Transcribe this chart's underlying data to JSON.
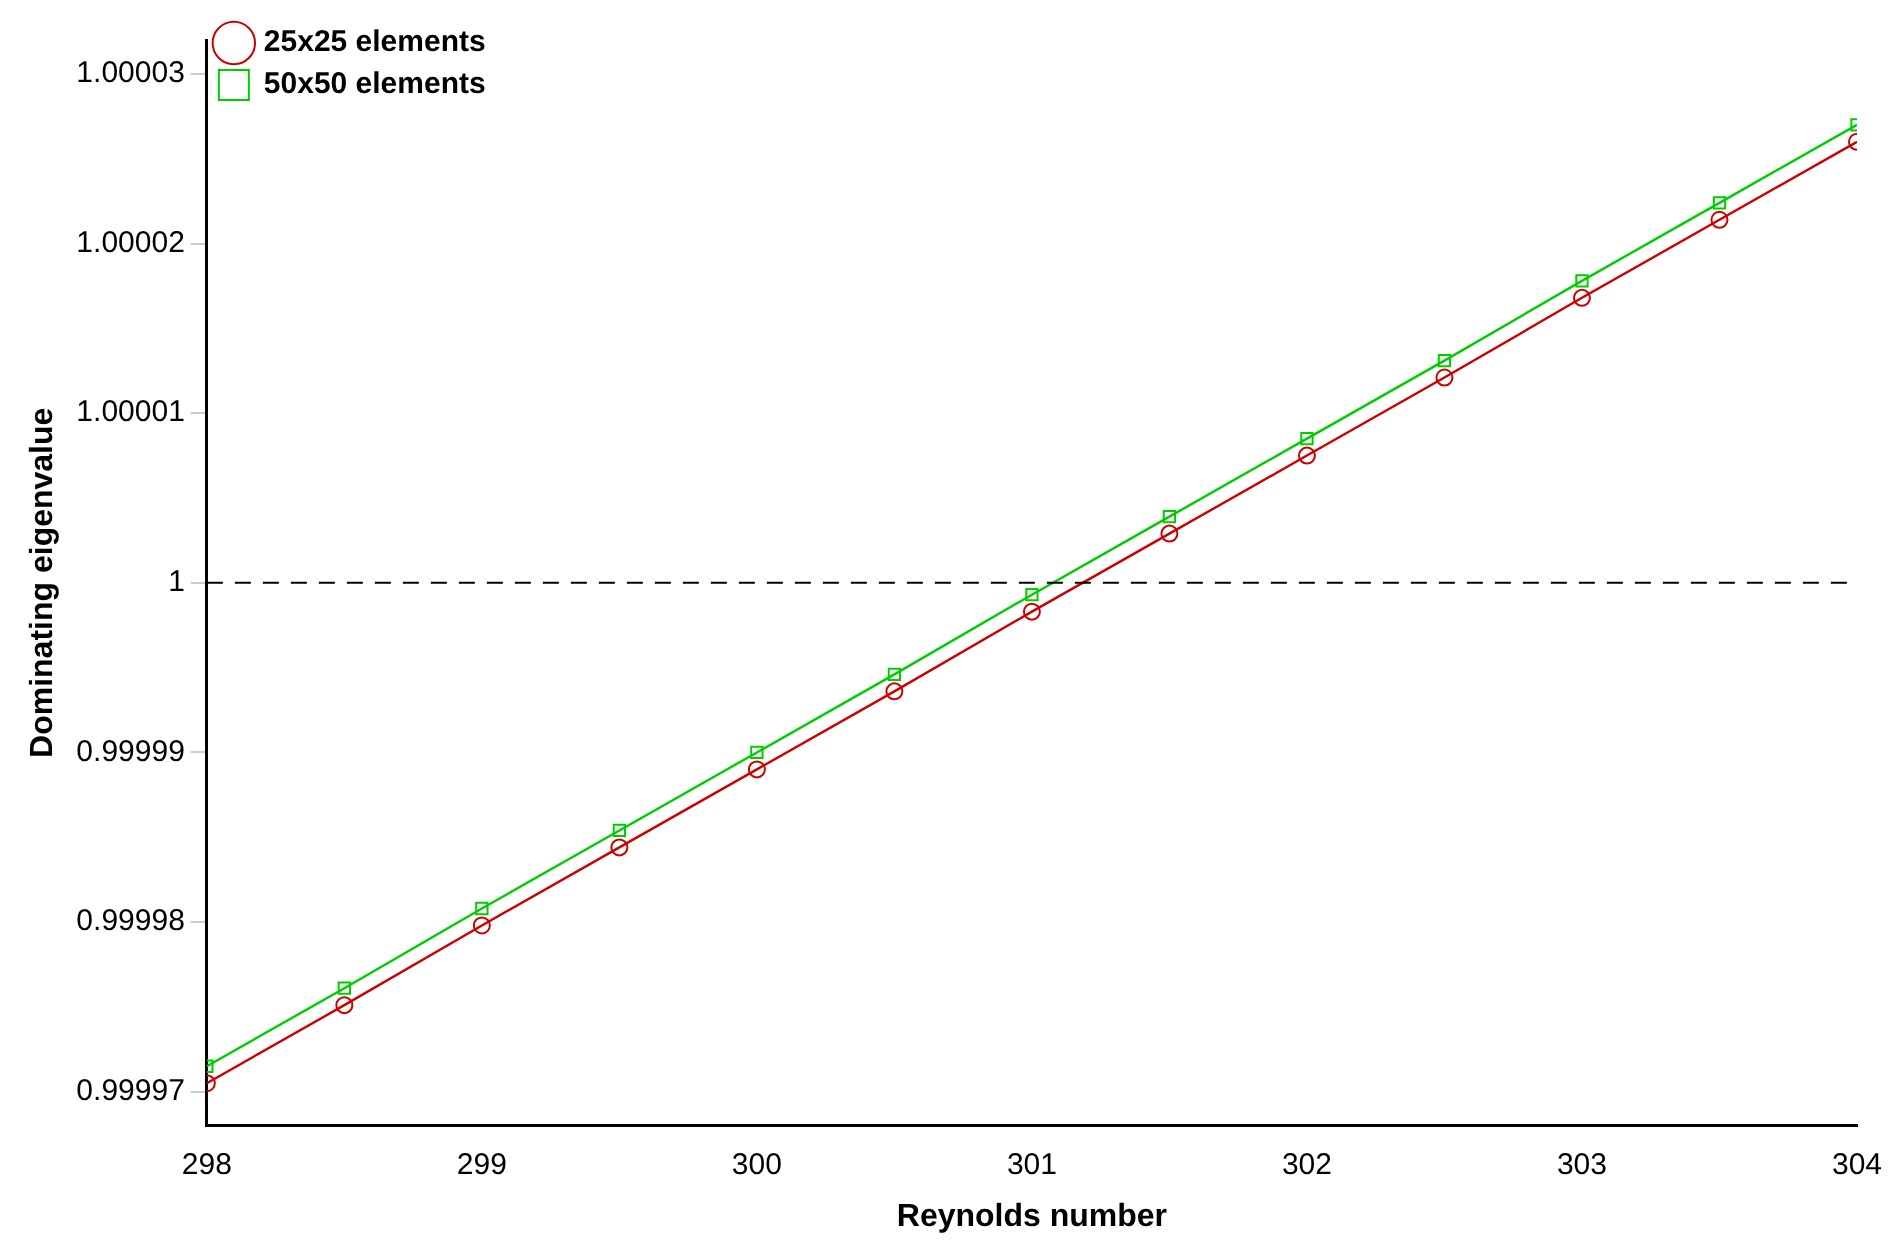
{
  "chart_data": {
    "type": "line",
    "xlabel": "Reynolds number",
    "ylabel": "Dominating eigenvalue",
    "x": [
      298,
      298.5,
      299,
      299.5,
      300,
      300.5,
      301,
      301.5,
      302,
      302.5,
      303,
      303.5,
      304
    ],
    "series": [
      {
        "name": "25x25 elements",
        "color": "#cc0000",
        "marker": "circle",
        "values": [
          0.9999705,
          0.9999751,
          0.9999798,
          0.9999844,
          0.999989,
          0.9999936,
          0.9999983,
          1.0000029,
          1.0000075,
          1.0000121,
          1.0000168,
          1.0000214,
          1.000026
        ]
      },
      {
        "name": "50x50 elements",
        "color": "#00cc00",
        "marker": "square",
        "values": [
          0.9999715,
          0.9999761,
          0.9999808,
          0.9999854,
          0.99999,
          0.9999946,
          0.9999993,
          1.0000039,
          1.0000085,
          1.0000131,
          1.0000178,
          1.0000224,
          1.000027
        ]
      }
    ],
    "xlim": [
      298,
      304
    ],
    "xticks": [
      298,
      299,
      300,
      301,
      302,
      303,
      304
    ],
    "ylim": [
      0.999968,
      1.000032
    ],
    "yticks": [
      0.99997,
      0.99998,
      0.99999,
      1,
      1.00001,
      1.00002,
      1.00003
    ],
    "ref_lines": [
      {
        "axis": "y",
        "value": 1,
        "color": "#000000",
        "line_style": "dashed"
      }
    ],
    "legend": "top left",
    "grid": false,
    "line_style": "solid"
  }
}
